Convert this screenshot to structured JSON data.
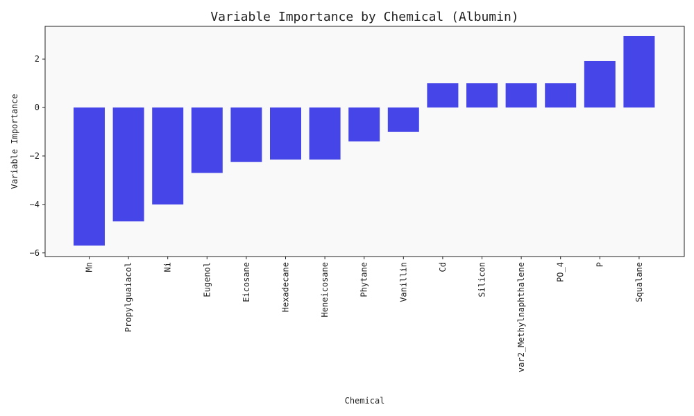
{
  "chart_data": {
    "type": "bar",
    "title": "Variable Importance by Chemical (Albumin)",
    "xlabel": "Chemical",
    "ylabel": "Variable Importance",
    "categories": [
      "Mn",
      "Propylguaiacol",
      "Ni",
      "Eugenol",
      "Eicosane",
      "Hexadecane",
      "Heneicosane",
      "Phytane",
      "Vanillin",
      "Cd",
      "Silicon",
      "var2_Methylnaphthalene",
      "PO_4",
      "P",
      "Squalane"
    ],
    "values": [
      -5.7,
      -4.7,
      -4.0,
      -2.7,
      -2.25,
      -2.15,
      -2.15,
      -1.4,
      -1.0,
      1.0,
      1.0,
      1.0,
      1.0,
      1.92,
      2.95
    ],
    "ylim": [
      -6.15,
      3.35
    ],
    "yticks": [
      -6,
      -4,
      -2,
      0,
      2
    ],
    "grid": false,
    "legend": "none",
    "colors": {
      "bar": "#4646e8",
      "plot_background": "#f9f9f9",
      "axes": "#222222"
    }
  }
}
